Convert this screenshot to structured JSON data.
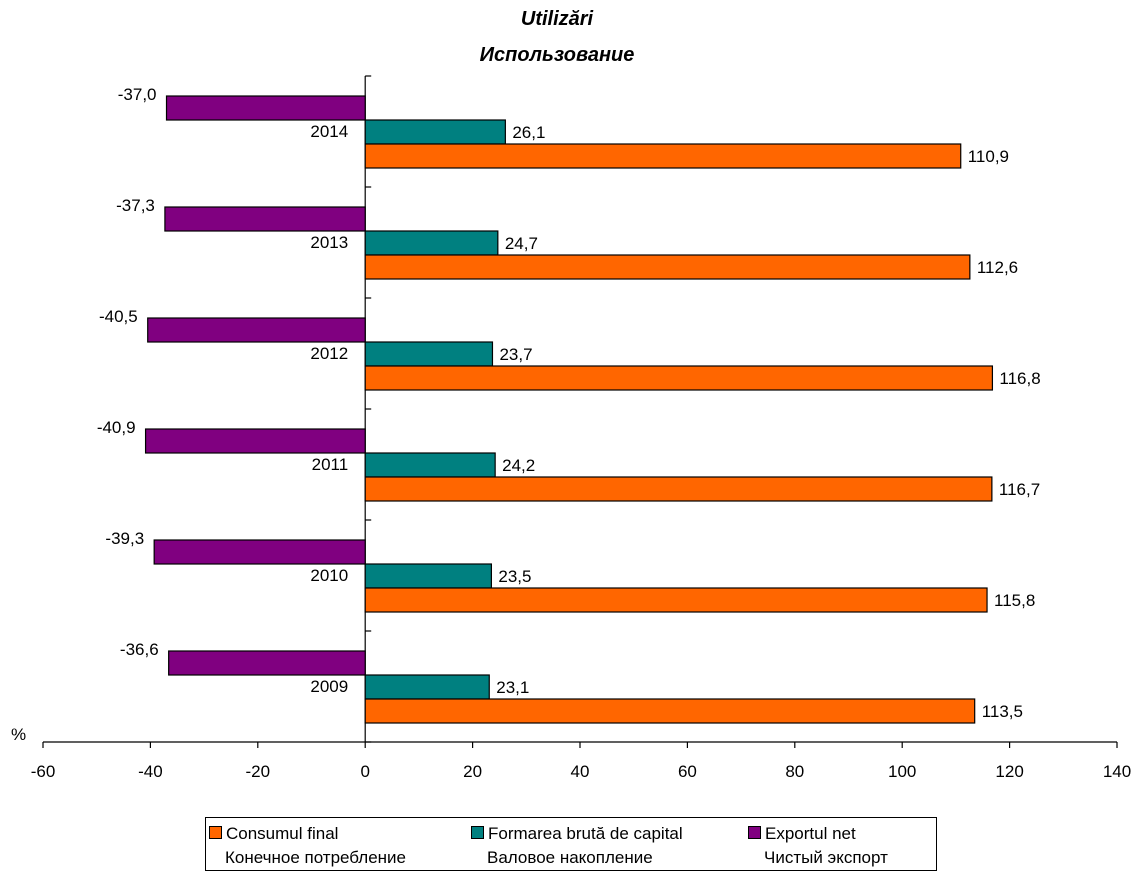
{
  "chart_data": {
    "type": "bar",
    "orientation": "horizontal",
    "title": "Utilizări",
    "subtitle": "Использование",
    "unit_label": "%",
    "categories": [
      "2014",
      "2013",
      "2012",
      "2011",
      "2010",
      "2009"
    ],
    "series": [
      {
        "name": "Exportul  net",
        "name_ru": "Чистый экспорт",
        "color": "#800080",
        "values": [
          -37.0,
          -37.3,
          -40.5,
          -40.9,
          -39.3,
          -36.6
        ],
        "labels": [
          "-37,0",
          "-37,3",
          "-40,5",
          "-40,9",
          "-39,3",
          "-36,6"
        ]
      },
      {
        "name": "Formarea brută de capital",
        "name_ru": "Валовое накопление",
        "color": "#008080",
        "values": [
          26.1,
          24.7,
          23.7,
          24.2,
          23.5,
          23.1
        ],
        "labels": [
          "26,1",
          "24,7",
          "23,7",
          "24,2",
          "23,5",
          "23,1"
        ]
      },
      {
        "name": "Consumul final",
        "name_ru": "Конечное потребление",
        "color": "#FF6600",
        "values": [
          110.9,
          112.6,
          116.8,
          116.7,
          115.8,
          113.5
        ],
        "labels": [
          "110,9",
          "112,6",
          "116,8",
          "116,7",
          "115,8",
          "113,5"
        ]
      }
    ],
    "xlim": [
      -60,
      140
    ],
    "xticks": [
      -60,
      -40,
      -20,
      0,
      20,
      40,
      60,
      80,
      100,
      120,
      140
    ],
    "grid": false,
    "legend_position": "bottom"
  },
  "legend": {
    "items": [
      {
        "label": "Consumul final",
        "sublabel": "Конечное потребление",
        "color": "#FF6600"
      },
      {
        "label": "Formarea brută de capital",
        "sublabel": "Валовое накопление",
        "color": "#008080"
      },
      {
        "label": "Exportul  net",
        "sublabel": "Чистый экспорт",
        "color": "#800080"
      }
    ]
  }
}
